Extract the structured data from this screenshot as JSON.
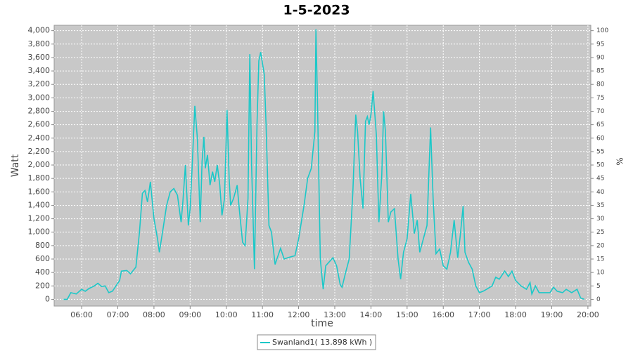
{
  "chart_data": {
    "type": "line",
    "title": "1-5-2023",
    "xlabel": "time",
    "ylabel": "Watt",
    "y2label": "%",
    "x": [
      5.5,
      5.6,
      5.7,
      5.85,
      6.0,
      6.1,
      6.2,
      6.35,
      6.45,
      6.55,
      6.65,
      6.75,
      6.85,
      6.95,
      7.05,
      7.1,
      7.25,
      7.35,
      7.5,
      7.6,
      7.68,
      7.75,
      7.82,
      7.9,
      8.0,
      8.1,
      8.15,
      8.25,
      8.35,
      8.45,
      8.55,
      8.65,
      8.75,
      8.8,
      8.87,
      8.95,
      9.0,
      9.05,
      9.13,
      9.2,
      9.28,
      9.33,
      9.38,
      9.42,
      9.48,
      9.55,
      9.62,
      9.68,
      9.75,
      9.82,
      9.88,
      9.95,
      10.02,
      10.08,
      10.12,
      10.2,
      10.3,
      10.35,
      10.45,
      10.52,
      10.6,
      10.65,
      10.7,
      10.78,
      10.85,
      10.9,
      10.95,
      11.05,
      11.1,
      11.18,
      11.25,
      11.35,
      11.4,
      11.5,
      11.6,
      11.7,
      11.9,
      12.0,
      12.15,
      12.25,
      12.35,
      12.45,
      12.48,
      12.52,
      12.6,
      12.68,
      12.75,
      12.85,
      12.95,
      13.05,
      13.15,
      13.2,
      13.3,
      13.4,
      13.5,
      13.58,
      13.63,
      13.7,
      13.78,
      13.85,
      13.9,
      13.95,
      14.0,
      14.06,
      14.15,
      14.22,
      14.3,
      14.35,
      14.4,
      14.48,
      14.55,
      14.65,
      14.75,
      14.82,
      14.9,
      15.0,
      15.1,
      15.2,
      15.28,
      15.35,
      15.45,
      15.55,
      15.65,
      15.72,
      15.8,
      15.9,
      16.0,
      16.1,
      16.2,
      16.3,
      16.4,
      16.47,
      16.55,
      16.6,
      16.7,
      16.8,
      16.9,
      17.0,
      17.1,
      17.2,
      17.35,
      17.45,
      17.55,
      17.7,
      17.8,
      17.9,
      18.0,
      18.15,
      18.3,
      18.4,
      18.45,
      18.55,
      18.65,
      18.8,
      18.95,
      19.05,
      19.15,
      19.3,
      19.4,
      19.55,
      19.7,
      19.8,
      19.9
    ],
    "series": [
      {
        "name": "Swanland1( 13.898 kWh )",
        "color": "#1cc8c8",
        "values": [
          0,
          0,
          100,
          80,
          150,
          120,
          160,
          200,
          240,
          190,
          200,
          100,
          120,
          200,
          280,
          420,
          430,
          380,
          480,
          1000,
          1580,
          1620,
          1450,
          1750,
          1200,
          900,
          700,
          1050,
          1400,
          1600,
          1650,
          1550,
          1150,
          1450,
          2000,
          1100,
          1350,
          1900,
          2880,
          2400,
          1150,
          2050,
          2420,
          1950,
          2150,
          1700,
          1900,
          1750,
          2000,
          1700,
          1250,
          1500,
          2820,
          1800,
          1400,
          1500,
          1700,
          1400,
          850,
          800,
          1500,
          3650,
          2000,
          450,
          2600,
          3550,
          3680,
          3350,
          2600,
          1100,
          1000,
          520,
          600,
          760,
          600,
          620,
          650,
          900,
          1400,
          1800,
          1950,
          2500,
          4020,
          3000,
          600,
          150,
          500,
          560,
          620,
          500,
          220,
          180,
          400,
          600,
          1600,
          2750,
          2500,
          1800,
          1350,
          2650,
          2720,
          2600,
          2750,
          3100,
          2450,
          1150,
          1850,
          2800,
          2500,
          1150,
          1300,
          1350,
          600,
          300,
          700,
          900,
          1570,
          980,
          1180,
          700,
          900,
          1100,
          2560,
          1500,
          680,
          750,
          500,
          450,
          700,
          1180,
          620,
          950,
          1390,
          700,
          550,
          450,
          200,
          100,
          120,
          150,
          200,
          330,
          300,
          420,
          340,
          420,
          280,
          200,
          150,
          250,
          80,
          200,
          100,
          100,
          100,
          180,
          120,
          100,
          150,
          100,
          150,
          20,
          0
        ]
      }
    ],
    "xlim": [
      5.24,
      20.08
    ],
    "xticks": [
      {
        "value": 6,
        "label": "06:00"
      },
      {
        "value": 7,
        "label": "07:00"
      },
      {
        "value": 8,
        "label": "08:00"
      },
      {
        "value": 9,
        "label": "09:00"
      },
      {
        "value": 10,
        "label": "10:00"
      },
      {
        "value": 11,
        "label": "11:00"
      },
      {
        "value": 12,
        "label": "12:00"
      },
      {
        "value": 13,
        "label": "13:00"
      },
      {
        "value": 14,
        "label": "14:00"
      },
      {
        "value": 15,
        "label": "15:00"
      },
      {
        "value": 16,
        "label": "16:00"
      },
      {
        "value": 17,
        "label": "17:00"
      },
      {
        "value": 18,
        "label": "18:00"
      },
      {
        "value": 19,
        "label": "19:00"
      },
      {
        "value": 20,
        "label": "20:00"
      }
    ],
    "ylim": [
      -100,
      4080
    ],
    "yticks": [
      0,
      200,
      400,
      600,
      800,
      {
        "value": 1000,
        "label": "1,000"
      },
      {
        "value": 1200,
        "label": "1,200"
      },
      {
        "value": 1400,
        "label": "1,400"
      },
      {
        "value": 1600,
        "label": "1,600"
      },
      {
        "value": 1800,
        "label": "1,800"
      },
      {
        "value": 2000,
        "label": "2,000"
      },
      {
        "value": 2200,
        "label": "2,200"
      },
      {
        "value": 2400,
        "label": "2,400"
      },
      {
        "value": 2600,
        "label": "2,600"
      },
      {
        "value": 2800,
        "label": "2,800"
      },
      {
        "value": 3000,
        "label": "3,000"
      },
      {
        "value": 3200,
        "label": "3,200"
      },
      {
        "value": 3400,
        "label": "3,400"
      },
      {
        "value": 3600,
        "label": "3,600"
      },
      {
        "value": 3800,
        "label": "3,800"
      },
      {
        "value": 4000,
        "label": "4,000"
      }
    ],
    "y2lim": [
      -2.5,
      102
    ],
    "y2ticks": [
      0,
      5,
      10,
      15,
      20,
      25,
      30,
      35,
      40,
      45,
      50,
      55,
      60,
      65,
      70,
      75,
      80,
      85,
      90,
      95,
      100
    ],
    "grid": true,
    "legend": "bottom"
  }
}
